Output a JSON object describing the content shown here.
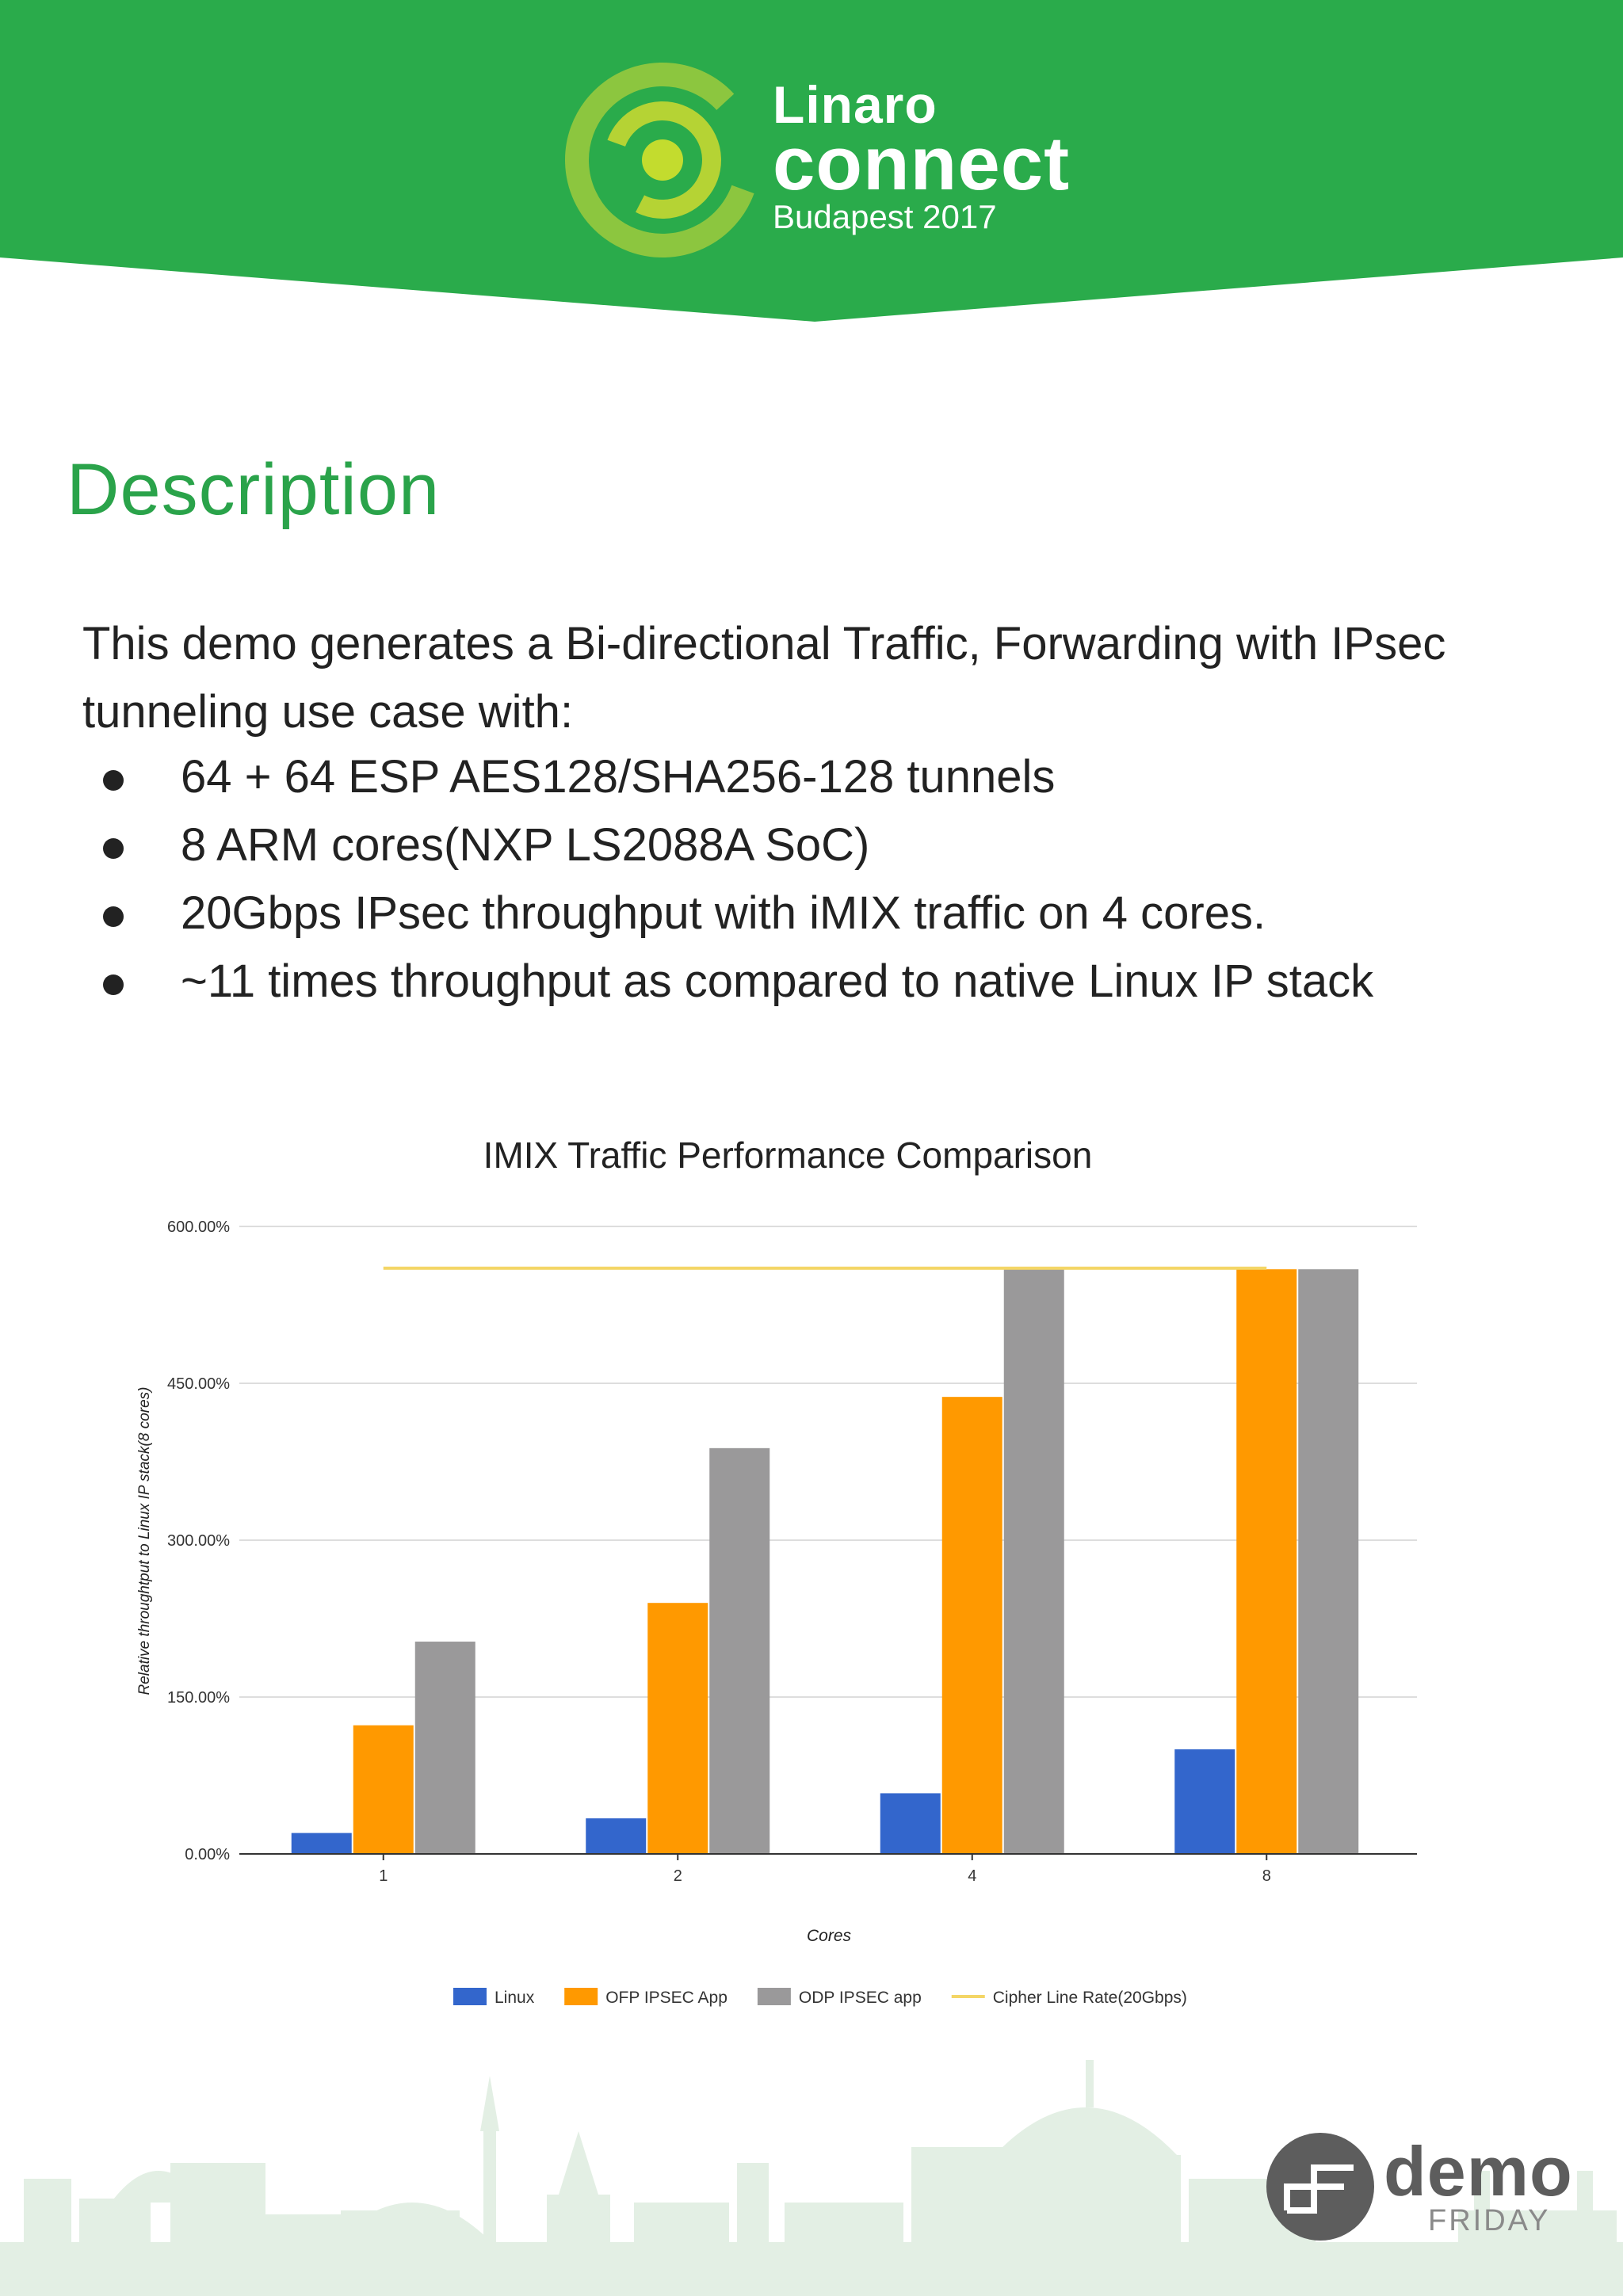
{
  "header": {
    "brand_line1": "Linaro",
    "brand_line2": "connect",
    "brand_line3": "Budapest 2017",
    "colors": {
      "band": "#2aab4b",
      "logo_outer": "#8cc63f",
      "logo_inner": "#b5d334"
    }
  },
  "page_title": "Description",
  "intro": "This demo generates a Bi-directional Traffic, Forwarding with IPsec tunneling use case with:",
  "bullets": [
    "64 + 64 ESP AES128/SHA256-128 tunnels",
    "8 ARM cores(NXP LS2088A SoC)",
    "20Gbps IPsec throughput with iMIX traffic on 4 cores.",
    "~11 times throughput as compared to native Linux IP stack"
  ],
  "chart_data": {
    "type": "bar",
    "title": "IMIX Traffic Performance Comparison",
    "xlabel": "Cores",
    "ylabel": "Relative throughtput to Linux IP stack(8 cores)",
    "categories": [
      "1",
      "2",
      "4",
      "8"
    ],
    "ylim": [
      0,
      600
    ],
    "yticks": [
      0,
      150,
      300,
      450,
      600
    ],
    "ytick_labels": [
      "0.00%",
      "150.00%",
      "300.00%",
      "450.00%",
      "600.00%"
    ],
    "grid": true,
    "legend_position": "bottom",
    "series": [
      {
        "name": "Linux",
        "color": "#3366cc",
        "values": [
          20,
          34,
          58,
          100
        ]
      },
      {
        "name": "OFP IPSEC App",
        "color": "#ff9900",
        "values": [
          123,
          240,
          437,
          559
        ]
      },
      {
        "name": "ODP IPSEC app",
        "color": "#9a999a",
        "values": [
          203,
          388,
          559,
          559
        ]
      }
    ],
    "line": {
      "name": "Cipher Line Rate(20Gbps)",
      "color": "#f4d666",
      "value": 560
    }
  },
  "badge": {
    "word": "demo",
    "sub": "FRIDAY"
  }
}
